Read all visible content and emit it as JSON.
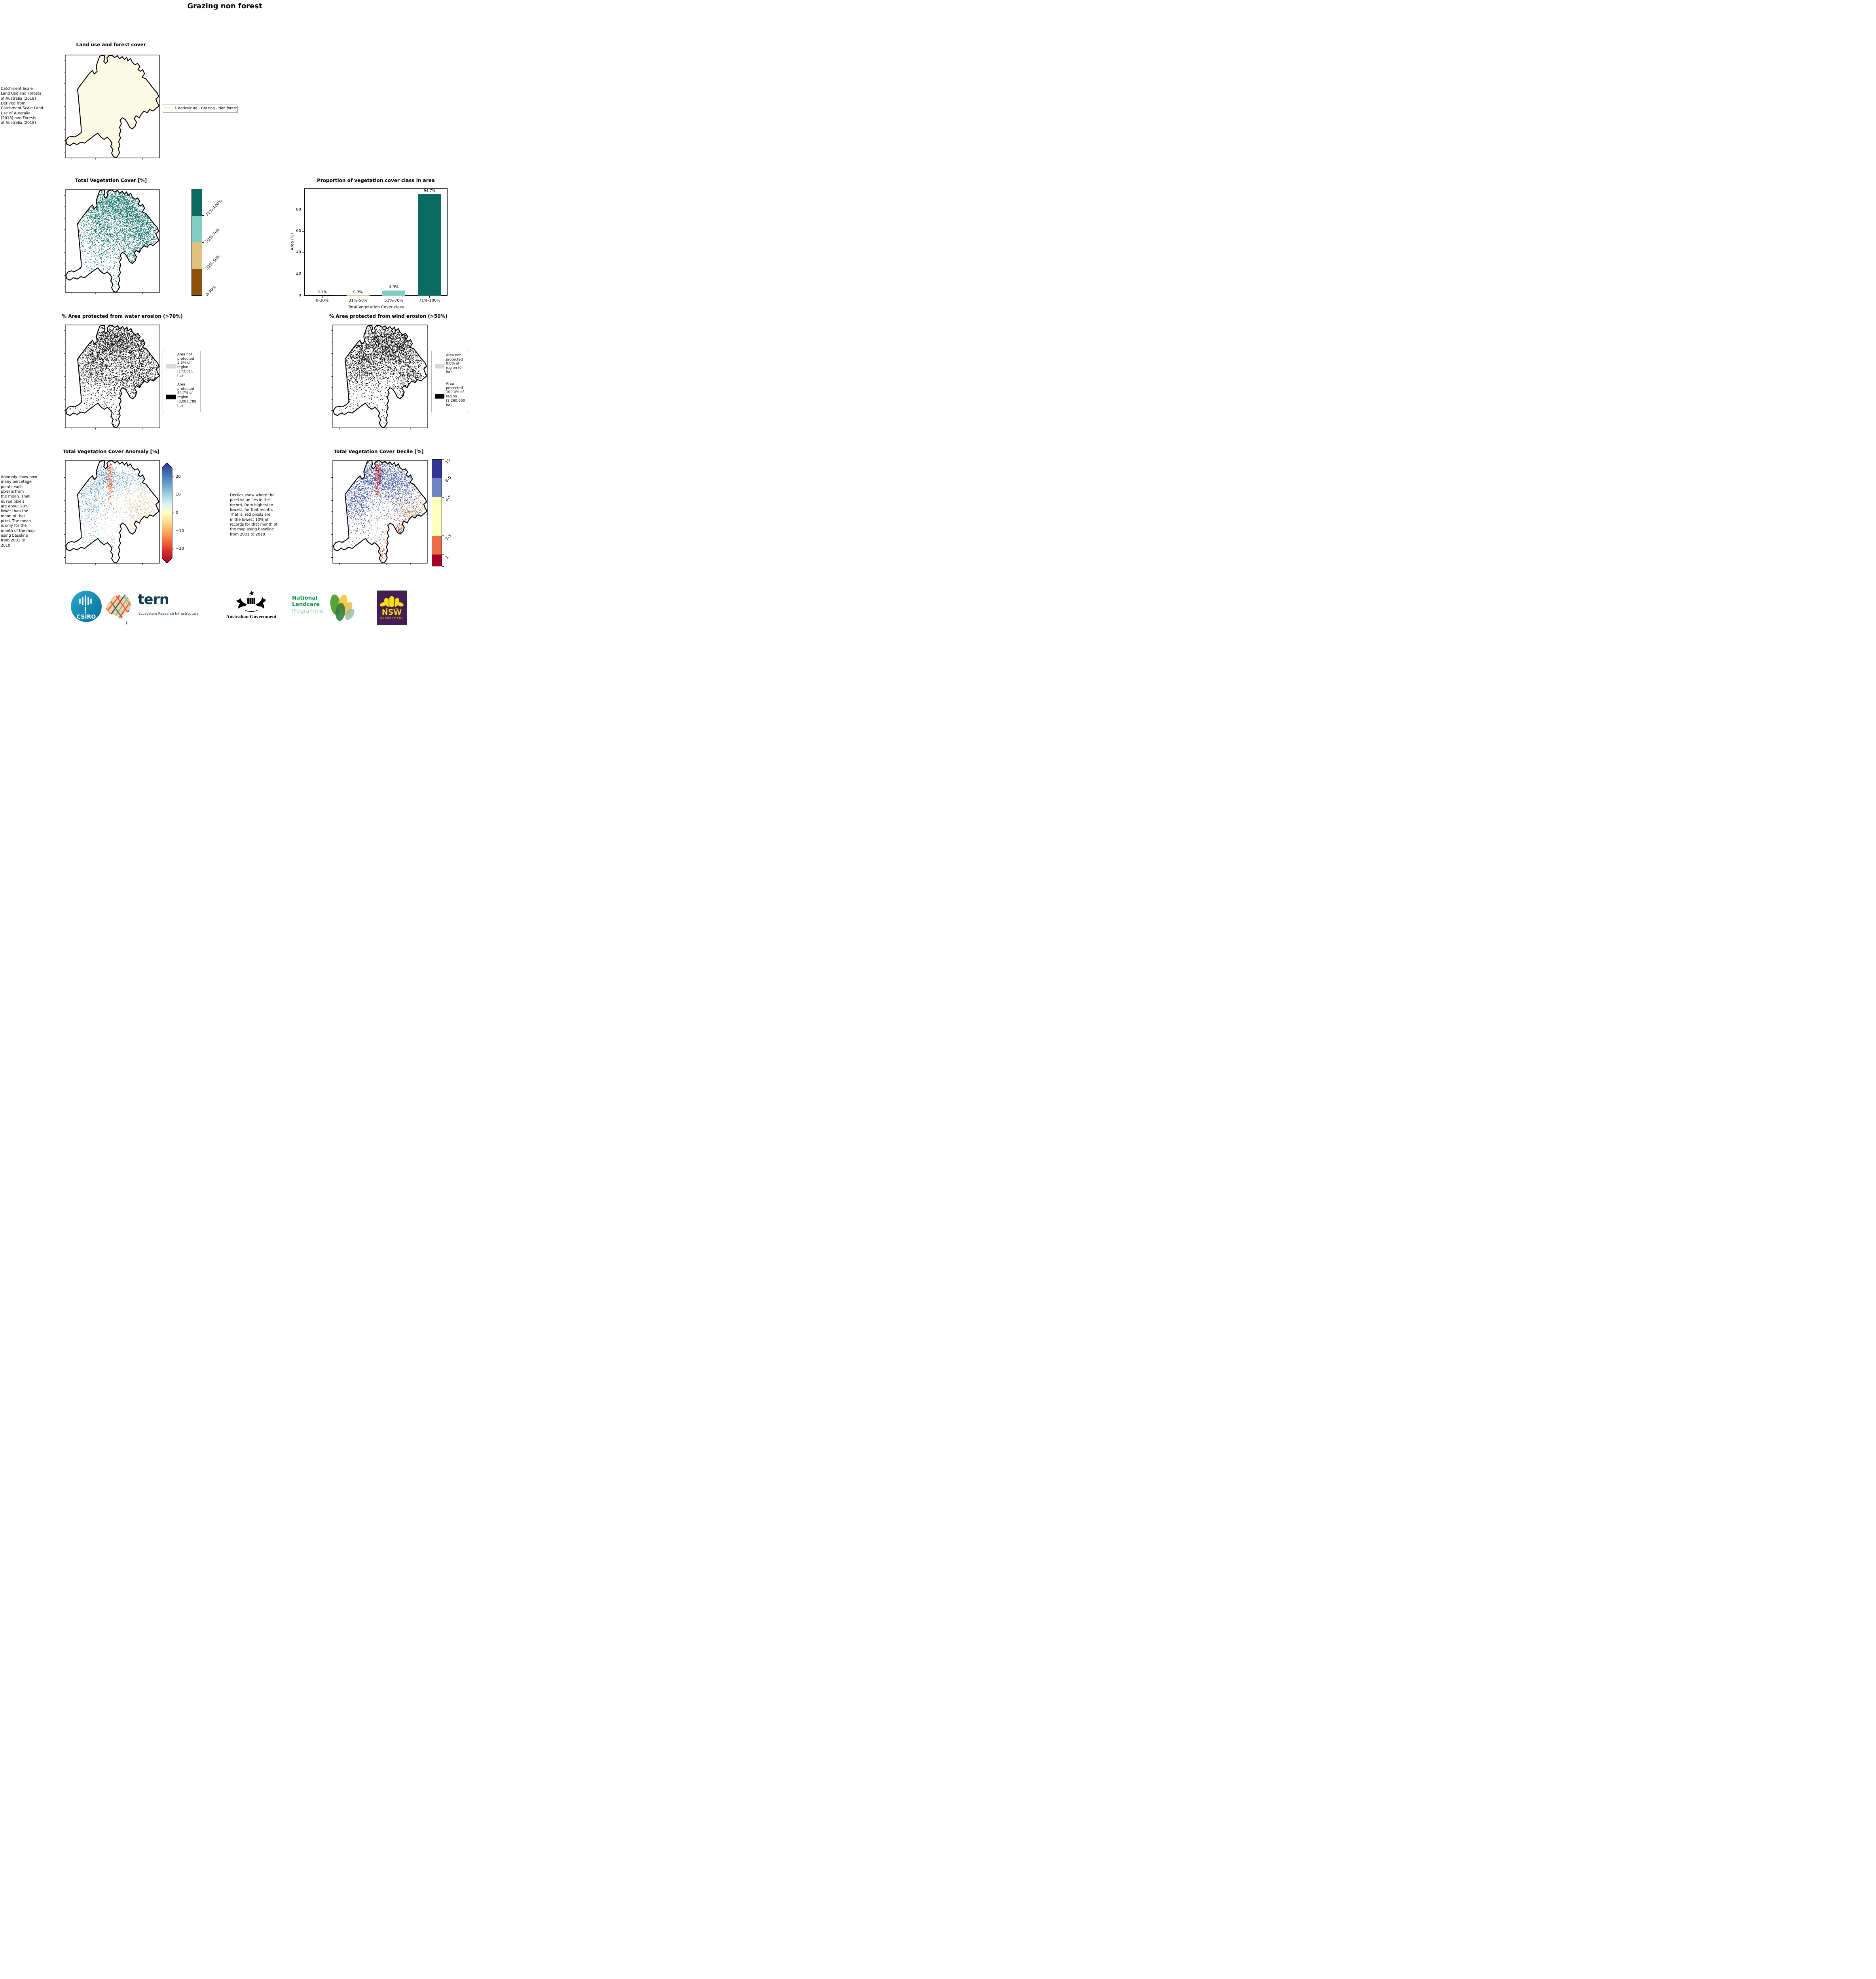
{
  "title": "Grazing non forest",
  "panels": {
    "land_use": {
      "title": "Land use and forest cover",
      "caption": " Catchment Scale\nLand Use and Forests\nof Australia (2018)\nDerived from\nCatchment Scale Land\nUse of Australia\n(2018) and Forests\nof Australia (2018)",
      "legend": {
        "label": "1 Agriculture - Grazing - Non forest",
        "swatch_color": "#FCFCE5"
      }
    },
    "tvc_map": {
      "title": "Total Vegetation Cover [%]",
      "colorbar": {
        "labels": [
          "71%-100%",
          "51%-70%",
          "31%-50%",
          "0-30%"
        ],
        "colors": [
          "#0B6A62",
          "#80CDC1",
          "#DFC27D",
          "#8C510A"
        ]
      }
    },
    "water_erosion": {
      "title": "% Area protected from water erosion (>70%)",
      "legend": [
        {
          "swatch_color": "#D9D9D9",
          "text": "Area not\nprotected\n5.3% of\nregion\n(172,811\nha)"
        },
        {
          "swatch_color": "#000000",
          "text": "Area\nprotected\n94.7% of\nregion\n(3,087,788\nha)"
        }
      ]
    },
    "wind_erosion": {
      "title": "% Area protected from wind erosion (>50%)",
      "legend": [
        {
          "swatch_color": "#D9D9D9",
          "text": "Area not\nprotected\n0.0% of\nregion (0\nha)"
        },
        {
          "swatch_color": "#000000",
          "text": "Area\nprotected\n100.0% of\nregion\n(3,260,600\nha)"
        }
      ]
    },
    "anomaly": {
      "title": "Total Vegetation Cover Anomaly [%]",
      "caption": "Anomaly show how\nmany percetage\npoints each\npixel is from\nthe mean. That\nis, red pixels\nare about 20%\nlower than the\nmean of that\npixel. The mean\nis only for the\nmonth of the map\nusing baseline\nfrom 2001 to\n2019.",
      "colorbar_ticks": [
        "20",
        "10",
        "0",
        "−10",
        "−20"
      ]
    },
    "decile": {
      "title": "Total Vegetation Cover Decile [%]",
      "caption": "Deciles show where the\npixel value lies in the\nrecord, from highest to\nlowest, for that month.\nThat is, red pixels are\nin the lowest 10% of\nrecords for that month of\nthe map using baseline\nfrom 2001 to 2019.",
      "colorbar": {
        "labels": [
          "10",
          "8-9",
          "4-7",
          "2-3",
          "1"
        ],
        "colors": [
          "#313695",
          "#6E87C2",
          "#FFFFBF",
          "#EA6E43",
          "#A50026"
        ],
        "boundaries": [
          0,
          0.175,
          0.355,
          0.715,
          0.89,
          1
        ]
      }
    }
  },
  "chart_data": {
    "type": "bar",
    "title": "Proportion of vegetation cover class in area",
    "categories": [
      "0-30%",
      "31%-50%",
      "51%-70%",
      "71%-100%"
    ],
    "values": [
      0.1,
      0.3,
      4.9,
      94.7
    ],
    "value_labels": [
      "0.1%",
      "0.3%",
      "4.9%",
      "94.7%"
    ],
    "bar_colors": [
      "#8C510A",
      "#DFC27D",
      "#80CDC1",
      "#0B6A62"
    ],
    "xlabel": "Total Vegetation Cover class",
    "ylabel": "Area (%)",
    "ylim": [
      0,
      100
    ],
    "yticks": [
      0,
      20,
      40,
      60,
      80
    ],
    "grid": false,
    "legend_position": "none"
  },
  "footer": {
    "csiro": {
      "label": "CSIRO"
    },
    "tern": {
      "label": "tern",
      "sublabel": "Ecosystem Research Infrastructure"
    },
    "australian_government": {
      "label": "Australian Government"
    },
    "landcare": {
      "line1": "National",
      "line2": "Landcare",
      "line3": "Programme"
    },
    "nsw": {
      "label": "NSW",
      "sublabel": "GOVERNMENT"
    }
  }
}
